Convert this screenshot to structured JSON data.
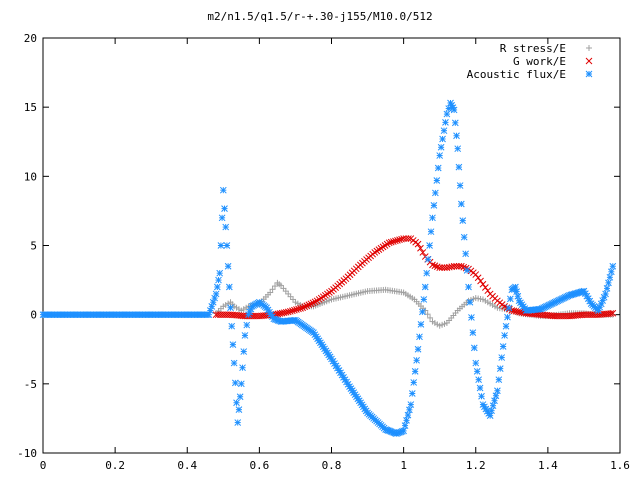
{
  "chart_data": {
    "type": "scatter",
    "title": "m2/n1.5/q1.5/r-+.30-j155/M10.0/512",
    "xlabel": "",
    "ylabel": "",
    "xlim": [
      0,
      1.6
    ],
    "ylim": [
      -10,
      20
    ],
    "x_ticks": [
      "0",
      "0.2",
      "0.4",
      "0.6",
      "0.8",
      "1",
      "1.2",
      "1.4",
      "1.6"
    ],
    "y_ticks": [
      "-10",
      "-5",
      "0",
      "5",
      "10",
      "15",
      "20"
    ],
    "grid": false,
    "legend_position": "top-right",
    "series": [
      {
        "name": "R stress/E",
        "marker": "plus",
        "color": "#a0a0a0",
        "x": [
          0.48,
          0.5,
          0.52,
          0.53,
          0.55,
          0.57,
          0.6,
          0.63,
          0.65,
          0.66,
          0.68,
          0.7,
          0.72,
          0.75,
          0.78,
          0.8,
          0.85,
          0.9,
          0.95,
          1.0,
          1.03,
          1.06,
          1.08,
          1.1,
          1.12,
          1.15,
          1.18,
          1.2,
          1.22,
          1.24,
          1.26,
          1.28,
          1.3,
          1.32,
          1.35,
          1.38,
          1.4,
          1.43,
          1.46,
          1.5,
          1.53,
          1.55,
          1.58
        ],
        "y": [
          0.1,
          0.6,
          0.9,
          0.6,
          0.3,
          0.6,
          0.8,
          1.6,
          2.3,
          2.1,
          1.5,
          0.9,
          0.6,
          0.6,
          0.9,
          1.1,
          1.4,
          1.7,
          1.8,
          1.6,
          1.1,
          0.3,
          -0.5,
          -0.8,
          -0.6,
          0.3,
          1.0,
          1.2,
          1.1,
          0.8,
          0.5,
          0.4,
          0.3,
          0.1,
          0.0,
          -0.1,
          -0.1,
          0.0,
          0.1,
          0.1,
          0.0,
          0.0,
          0.0
        ]
      },
      {
        "name": "G work/E",
        "marker": "cross",
        "color": "#e00000",
        "x": [
          0.48,
          0.52,
          0.56,
          0.6,
          0.64,
          0.68,
          0.72,
          0.76,
          0.8,
          0.84,
          0.88,
          0.92,
          0.96,
          1.0,
          1.02,
          1.04,
          1.06,
          1.08,
          1.1,
          1.12,
          1.14,
          1.16,
          1.18,
          1.2,
          1.22,
          1.24,
          1.26,
          1.28,
          1.3,
          1.34,
          1.38,
          1.42,
          1.46,
          1.5,
          1.54,
          1.58
        ],
        "y": [
          0.0,
          0.0,
          -0.1,
          -0.1,
          0.0,
          0.2,
          0.5,
          1.0,
          1.7,
          2.6,
          3.6,
          4.5,
          5.2,
          5.5,
          5.5,
          5.1,
          4.2,
          3.6,
          3.4,
          3.4,
          3.5,
          3.5,
          3.3,
          2.9,
          2.2,
          1.5,
          1.0,
          0.6,
          0.3,
          0.1,
          0.0,
          -0.1,
          -0.1,
          0.0,
          0.0,
          0.1
        ]
      },
      {
        "name": "Acoustic flux/E",
        "marker": "star",
        "color": "#1e90ff",
        "x": [
          0.0,
          0.1,
          0.2,
          0.3,
          0.4,
          0.46,
          0.48,
          0.49,
          0.5,
          0.51,
          0.52,
          0.53,
          0.54,
          0.55,
          0.56,
          0.57,
          0.58,
          0.6,
          0.62,
          0.64,
          0.66,
          0.7,
          0.75,
          0.8,
          0.85,
          0.9,
          0.95,
          0.98,
          1.0,
          1.02,
          1.04,
          1.06,
          1.08,
          1.1,
          1.12,
          1.13,
          1.14,
          1.15,
          1.16,
          1.18,
          1.2,
          1.22,
          1.24,
          1.26,
          1.28,
          1.3,
          1.31,
          1.32,
          1.34,
          1.38,
          1.42,
          1.46,
          1.5,
          1.52,
          1.54,
          1.56,
          1.58
        ],
        "y": [
          0,
          0,
          0,
          0,
          0,
          0,
          1.5,
          3.0,
          9.0,
          5.0,
          0.5,
          -3.5,
          -7.8,
          -5.0,
          -1.5,
          0.0,
          0.6,
          0.9,
          0.5,
          -0.3,
          -0.5,
          -0.4,
          -1.3,
          -3.2,
          -5.2,
          -7.1,
          -8.3,
          -8.6,
          -8.4,
          -6.5,
          -2.5,
          2.0,
          7.0,
          11.5,
          14.5,
          15.3,
          14.8,
          12.0,
          8.0,
          2.0,
          -3.5,
          -6.5,
          -7.3,
          -5.5,
          -1.5,
          1.8,
          2.0,
          1.0,
          0.3,
          0.4,
          0.9,
          1.4,
          1.7,
          0.8,
          0.3,
          1.5,
          3.5
        ]
      }
    ]
  }
}
